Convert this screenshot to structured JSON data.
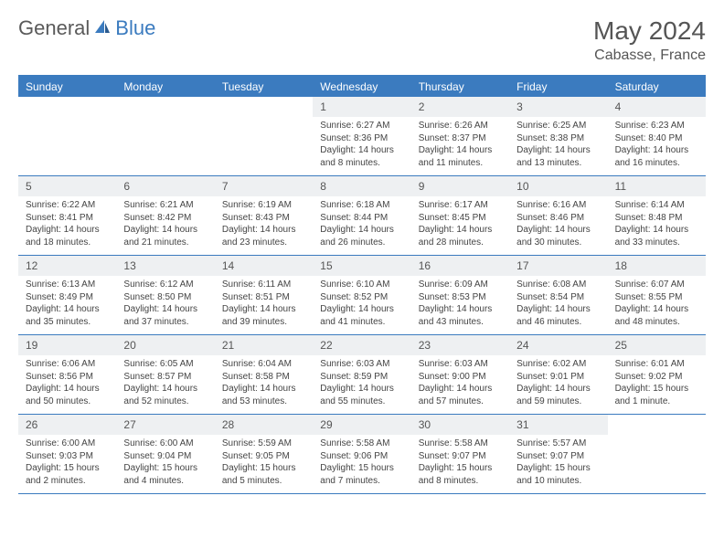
{
  "brand": {
    "part1": "General",
    "part2": "Blue"
  },
  "title": "May 2024",
  "location": "Cabasse, France",
  "colors": {
    "accent": "#3b7bbf",
    "header_text": "#ffffff",
    "cell_num_bg": "#eef0f2",
    "body_text": "#444444",
    "title_text": "#555555",
    "background": "#ffffff"
  },
  "typography": {
    "title_fontsize": 28,
    "location_fontsize": 16,
    "day_header_fontsize": 12,
    "cell_num_fontsize": 12,
    "cell_body_fontsize": 10
  },
  "day_names": [
    "Sunday",
    "Monday",
    "Tuesday",
    "Wednesday",
    "Thursday",
    "Friday",
    "Saturday"
  ],
  "weeks": [
    [
      {
        "n": "",
        "sunrise": "",
        "sunset": "",
        "daylight": "",
        "empty": true
      },
      {
        "n": "",
        "sunrise": "",
        "sunset": "",
        "daylight": "",
        "empty": true
      },
      {
        "n": "",
        "sunrise": "",
        "sunset": "",
        "daylight": "",
        "empty": true
      },
      {
        "n": "1",
        "sunrise": "Sunrise: 6:27 AM",
        "sunset": "Sunset: 8:36 PM",
        "daylight": "Daylight: 14 hours and 8 minutes."
      },
      {
        "n": "2",
        "sunrise": "Sunrise: 6:26 AM",
        "sunset": "Sunset: 8:37 PM",
        "daylight": "Daylight: 14 hours and 11 minutes."
      },
      {
        "n": "3",
        "sunrise": "Sunrise: 6:25 AM",
        "sunset": "Sunset: 8:38 PM",
        "daylight": "Daylight: 14 hours and 13 minutes."
      },
      {
        "n": "4",
        "sunrise": "Sunrise: 6:23 AM",
        "sunset": "Sunset: 8:40 PM",
        "daylight": "Daylight: 14 hours and 16 minutes."
      }
    ],
    [
      {
        "n": "5",
        "sunrise": "Sunrise: 6:22 AM",
        "sunset": "Sunset: 8:41 PM",
        "daylight": "Daylight: 14 hours and 18 minutes."
      },
      {
        "n": "6",
        "sunrise": "Sunrise: 6:21 AM",
        "sunset": "Sunset: 8:42 PM",
        "daylight": "Daylight: 14 hours and 21 minutes."
      },
      {
        "n": "7",
        "sunrise": "Sunrise: 6:19 AM",
        "sunset": "Sunset: 8:43 PM",
        "daylight": "Daylight: 14 hours and 23 minutes."
      },
      {
        "n": "8",
        "sunrise": "Sunrise: 6:18 AM",
        "sunset": "Sunset: 8:44 PM",
        "daylight": "Daylight: 14 hours and 26 minutes."
      },
      {
        "n": "9",
        "sunrise": "Sunrise: 6:17 AM",
        "sunset": "Sunset: 8:45 PM",
        "daylight": "Daylight: 14 hours and 28 minutes."
      },
      {
        "n": "10",
        "sunrise": "Sunrise: 6:16 AM",
        "sunset": "Sunset: 8:46 PM",
        "daylight": "Daylight: 14 hours and 30 minutes."
      },
      {
        "n": "11",
        "sunrise": "Sunrise: 6:14 AM",
        "sunset": "Sunset: 8:48 PM",
        "daylight": "Daylight: 14 hours and 33 minutes."
      }
    ],
    [
      {
        "n": "12",
        "sunrise": "Sunrise: 6:13 AM",
        "sunset": "Sunset: 8:49 PM",
        "daylight": "Daylight: 14 hours and 35 minutes."
      },
      {
        "n": "13",
        "sunrise": "Sunrise: 6:12 AM",
        "sunset": "Sunset: 8:50 PM",
        "daylight": "Daylight: 14 hours and 37 minutes."
      },
      {
        "n": "14",
        "sunrise": "Sunrise: 6:11 AM",
        "sunset": "Sunset: 8:51 PM",
        "daylight": "Daylight: 14 hours and 39 minutes."
      },
      {
        "n": "15",
        "sunrise": "Sunrise: 6:10 AM",
        "sunset": "Sunset: 8:52 PM",
        "daylight": "Daylight: 14 hours and 41 minutes."
      },
      {
        "n": "16",
        "sunrise": "Sunrise: 6:09 AM",
        "sunset": "Sunset: 8:53 PM",
        "daylight": "Daylight: 14 hours and 43 minutes."
      },
      {
        "n": "17",
        "sunrise": "Sunrise: 6:08 AM",
        "sunset": "Sunset: 8:54 PM",
        "daylight": "Daylight: 14 hours and 46 minutes."
      },
      {
        "n": "18",
        "sunrise": "Sunrise: 6:07 AM",
        "sunset": "Sunset: 8:55 PM",
        "daylight": "Daylight: 14 hours and 48 minutes."
      }
    ],
    [
      {
        "n": "19",
        "sunrise": "Sunrise: 6:06 AM",
        "sunset": "Sunset: 8:56 PM",
        "daylight": "Daylight: 14 hours and 50 minutes."
      },
      {
        "n": "20",
        "sunrise": "Sunrise: 6:05 AM",
        "sunset": "Sunset: 8:57 PM",
        "daylight": "Daylight: 14 hours and 52 minutes."
      },
      {
        "n": "21",
        "sunrise": "Sunrise: 6:04 AM",
        "sunset": "Sunset: 8:58 PM",
        "daylight": "Daylight: 14 hours and 53 minutes."
      },
      {
        "n": "22",
        "sunrise": "Sunrise: 6:03 AM",
        "sunset": "Sunset: 8:59 PM",
        "daylight": "Daylight: 14 hours and 55 minutes."
      },
      {
        "n": "23",
        "sunrise": "Sunrise: 6:03 AM",
        "sunset": "Sunset: 9:00 PM",
        "daylight": "Daylight: 14 hours and 57 minutes."
      },
      {
        "n": "24",
        "sunrise": "Sunrise: 6:02 AM",
        "sunset": "Sunset: 9:01 PM",
        "daylight": "Daylight: 14 hours and 59 minutes."
      },
      {
        "n": "25",
        "sunrise": "Sunrise: 6:01 AM",
        "sunset": "Sunset: 9:02 PM",
        "daylight": "Daylight: 15 hours and 1 minute."
      }
    ],
    [
      {
        "n": "26",
        "sunrise": "Sunrise: 6:00 AM",
        "sunset": "Sunset: 9:03 PM",
        "daylight": "Daylight: 15 hours and 2 minutes."
      },
      {
        "n": "27",
        "sunrise": "Sunrise: 6:00 AM",
        "sunset": "Sunset: 9:04 PM",
        "daylight": "Daylight: 15 hours and 4 minutes."
      },
      {
        "n": "28",
        "sunrise": "Sunrise: 5:59 AM",
        "sunset": "Sunset: 9:05 PM",
        "daylight": "Daylight: 15 hours and 5 minutes."
      },
      {
        "n": "29",
        "sunrise": "Sunrise: 5:58 AM",
        "sunset": "Sunset: 9:06 PM",
        "daylight": "Daylight: 15 hours and 7 minutes."
      },
      {
        "n": "30",
        "sunrise": "Sunrise: 5:58 AM",
        "sunset": "Sunset: 9:07 PM",
        "daylight": "Daylight: 15 hours and 8 minutes."
      },
      {
        "n": "31",
        "sunrise": "Sunrise: 5:57 AM",
        "sunset": "Sunset: 9:07 PM",
        "daylight": "Daylight: 15 hours and 10 minutes."
      },
      {
        "n": "",
        "sunrise": "",
        "sunset": "",
        "daylight": "",
        "empty": true
      }
    ]
  ]
}
